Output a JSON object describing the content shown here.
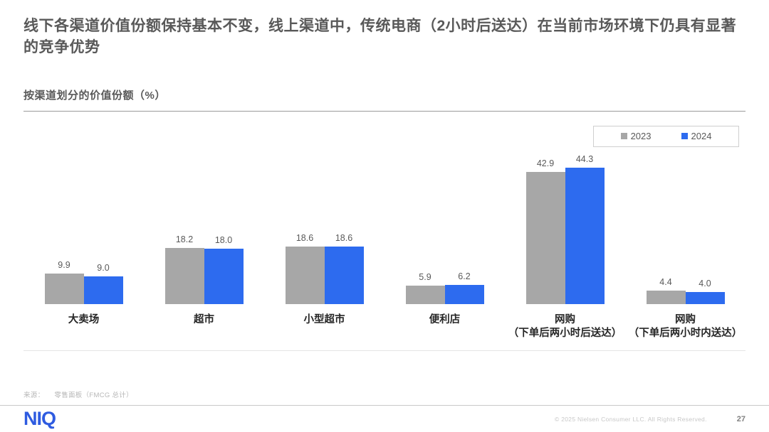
{
  "header": {
    "title": "线下各渠道价值份额保持基本不变，线上渠道中，传统电商（2小时后送达）在当前市场环境下仍具有显著的竞争优势"
  },
  "chart": {
    "subtitle": "按渠道划分的价值份额（%）"
  },
  "chart_data": {
    "type": "bar",
    "title": "按渠道划分的价值份额（%）",
    "categories": [
      "大卖场",
      "超市",
      "小型超市",
      "便利店",
      "网购\n（下单后两小时后送达）",
      "网购\n（下单后两小时内送达）"
    ],
    "series": [
      {
        "name": "2023",
        "color": "#A7A7A7",
        "values": [
          9.9,
          18.2,
          18.6,
          5.9,
          42.9,
          4.4
        ]
      },
      {
        "name": "2024",
        "color": "#2D6BEF",
        "values": [
          9.0,
          18.0,
          18.6,
          6.2,
          44.3,
          4.0
        ]
      }
    ],
    "ylim": [
      0,
      50
    ],
    "grid": false,
    "legend_position": "top-right",
    "value_labels": true,
    "value_label_decimals": 1
  },
  "footer": {
    "source_label": "来源：",
    "source_text": "零售面板（FMCG 总计）",
    "logo_text": "NIQ",
    "copyright": "© 2025 Nielsen Consumer LLC. All Rights Reserved.",
    "page_number": "27"
  },
  "colors": {
    "bar_2023": "#A7A7A7",
    "bar_2024": "#2D6BEF",
    "title_text": "#595959",
    "logo_blue": "#2E5BE0"
  }
}
